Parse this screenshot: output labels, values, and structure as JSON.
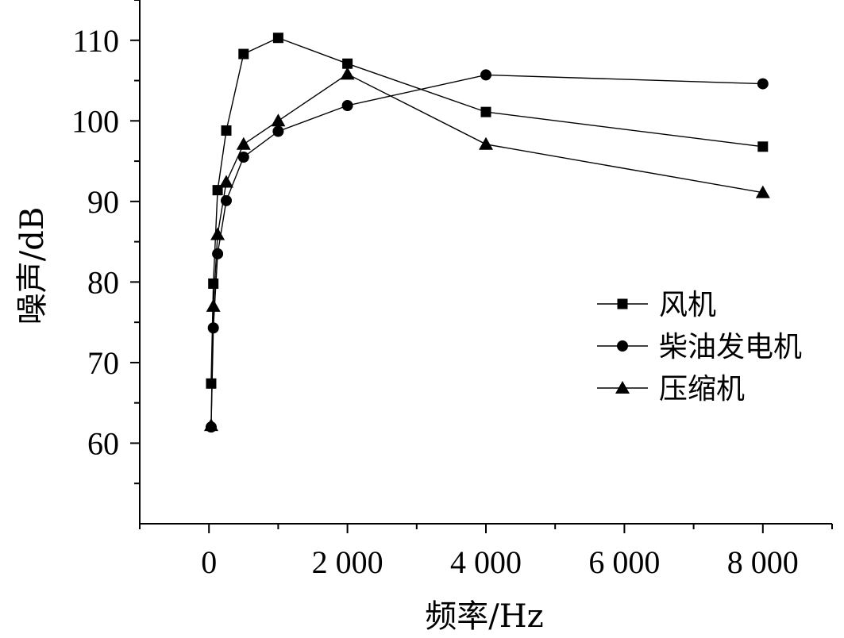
{
  "chart_data": {
    "type": "line",
    "xlabel": "频率/Hz",
    "ylabel": "噪声/dB",
    "x": [
      31.5,
      63,
      125,
      250,
      500,
      1000,
      2000,
      4000,
      8000
    ],
    "xlim": [
      -1000,
      9000
    ],
    "ylim": [
      50,
      115
    ],
    "xticks": [
      0,
      2000,
      4000,
      6000,
      8000
    ],
    "xtick_labels": [
      "0",
      "2 000",
      "4 000",
      "6 000",
      "8 000"
    ],
    "yticks": [
      60,
      70,
      80,
      90,
      100,
      110
    ],
    "ytick_labels": [
      "60",
      "70",
      "80",
      "90",
      "100",
      "110"
    ],
    "grid": false,
    "legend_position": "center-right",
    "series": [
      {
        "name": "风机",
        "marker": "square",
        "values": [
          67.4,
          79.8,
          91.4,
          98.8,
          108.3,
          110.3,
          107.1,
          101.1,
          96.8
        ]
      },
      {
        "name": "柴油发电机",
        "marker": "circle",
        "values": [
          62.0,
          74.3,
          83.5,
          90.1,
          95.5,
          98.7,
          101.9,
          105.7,
          104.6
        ]
      },
      {
        "name": "压缩机",
        "marker": "triangle",
        "values": [
          62.2,
          77.0,
          85.9,
          92.4,
          97.1,
          100.0,
          105.8,
          97.1,
          91.1
        ]
      }
    ]
  }
}
